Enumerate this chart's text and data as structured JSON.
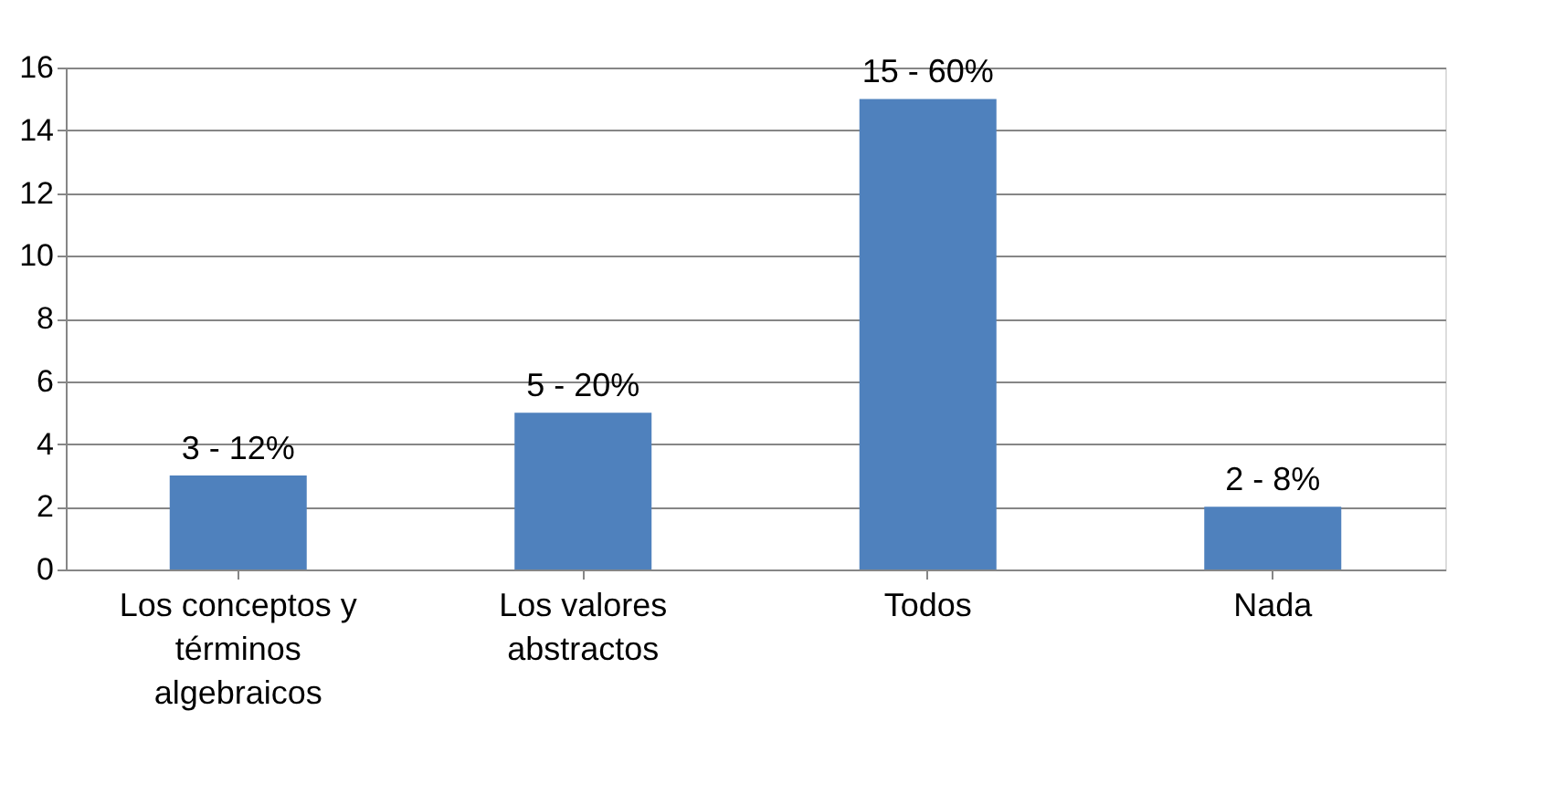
{
  "chart_data": {
    "type": "bar",
    "categories": [
      "Los conceptos y términos algebraicos",
      "Los valores abstractos",
      "Todos",
      "Nada"
    ],
    "values": [
      3,
      5,
      15,
      2
    ],
    "value_labels": [
      "3 - 12%",
      "5 - 20%",
      "15 - 60%",
      "2 - 8%"
    ],
    "color": "#4f81bd",
    "ylim": [
      0,
      16
    ],
    "yticks": [
      0,
      2,
      4,
      6,
      8,
      10,
      12,
      14,
      16
    ],
    "grid": "y"
  }
}
